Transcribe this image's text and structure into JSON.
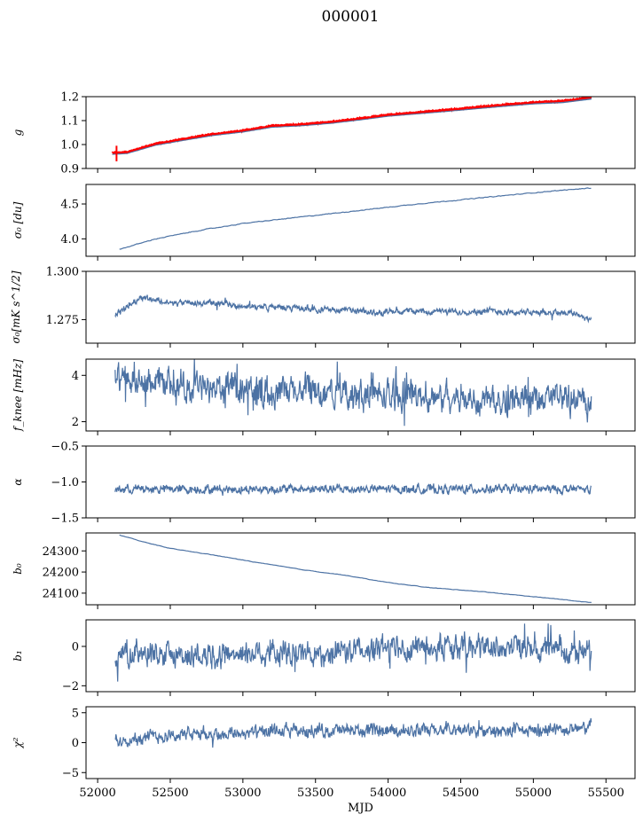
{
  "figure_title": "000001",
  "colors": {
    "series": "#4c72a4",
    "highlight": "#ff0000",
    "axes": "#000000"
  },
  "chart_data": [
    {
      "type": "line",
      "ylabel": "g",
      "ylim": [
        0.9,
        1.2
      ],
      "yticks": [
        0.9,
        1.0,
        1.1,
        1.2
      ],
      "ytick_labels": [
        "0.9",
        "1.0",
        "1.1",
        "1.2"
      ],
      "series": [
        {
          "x": [
            52100,
            52200,
            52400,
            52600,
            52800,
            53000,
            53200,
            53400,
            53600,
            53800,
            54000,
            54200,
            54400,
            54600,
            54800,
            55000,
            55200,
            55400
          ],
          "values": [
            0.96,
            0.965,
            1.0,
            1.02,
            1.04,
            1.055,
            1.075,
            1.08,
            1.09,
            1.105,
            1.12,
            1.13,
            1.14,
            1.15,
            1.16,
            1.17,
            1.175,
            1.19
          ]
        }
      ],
      "highlight_series": {
        "x": [
          52100,
          52200,
          52400,
          52600,
          52800,
          53000,
          53200,
          53400,
          53600,
          53800,
          54000,
          54200,
          54400,
          54600,
          54800,
          55000,
          55200,
          55400
        ],
        "values": [
          0.965,
          0.968,
          1.003,
          1.024,
          1.044,
          1.058,
          1.078,
          1.084,
          1.094,
          1.108,
          1.124,
          1.134,
          1.144,
          1.155,
          1.166,
          1.176,
          1.182,
          1.197
        ]
      }
    },
    {
      "type": "line",
      "ylabel": "σ₀ [du]",
      "ylim": [
        3.75,
        4.78
      ],
      "yticks": [
        4.0,
        4.5
      ],
      "ytick_labels": [
        "4.0",
        "4.5"
      ],
      "series": [
        {
          "x": [
            52150,
            52400,
            52700,
            53000,
            53300,
            53600,
            53900,
            54200,
            54500,
            54800,
            55100,
            55400
          ],
          "values": [
            3.85,
            4.0,
            4.12,
            4.22,
            4.29,
            4.36,
            4.43,
            4.5,
            4.56,
            4.62,
            4.68,
            4.73
          ]
        }
      ]
    },
    {
      "type": "line",
      "ylabel": "σ₀[mK s^1/2]",
      "ylim": [
        1.2628,
        1.3
      ],
      "yticks": [
        1.275,
        1.3
      ],
      "ytick_labels": [
        "1.275",
        "1.300"
      ],
      "series": [
        {
          "x": [
            52120,
            52200,
            52300,
            52500,
            52800,
            53000,
            53200,
            53500,
            53700,
            53900,
            54100,
            54400,
            54700,
            55000,
            55200,
            55300,
            55400
          ],
          "values": [
            1.2775,
            1.2815,
            1.287,
            1.2835,
            1.2835,
            1.282,
            1.2815,
            1.2805,
            1.28,
            1.2785,
            1.2795,
            1.279,
            1.2795,
            1.2785,
            1.279,
            1.278,
            1.2745
          ]
        }
      ]
    },
    {
      "type": "line",
      "ylabel": "f_knee [mHz]",
      "ylim": [
        1.6,
        4.7
      ],
      "yticks": [
        2,
        4
      ],
      "ytick_labels": [
        "2",
        "4"
      ],
      "series": [
        {
          "x": [
            52120,
            52300,
            52600,
            52900,
            53200,
            53500,
            53800,
            54100,
            54400,
            54700,
            55000,
            55200,
            55400
          ],
          "values": [
            3.8,
            3.7,
            3.5,
            3.4,
            3.3,
            3.25,
            3.2,
            3.1,
            3.05,
            3.0,
            3.0,
            3.05,
            2.8
          ]
        }
      ]
    },
    {
      "type": "line",
      "ylabel": "α",
      "ylim": [
        -1.5,
        -0.5
      ],
      "yticks": [
        -1.5,
        -1.0,
        -0.5
      ],
      "ytick_labels": [
        "−1.5",
        "−1.0",
        "−0.5"
      ],
      "series": [
        {
          "x": [
            52120,
            52500,
            53000,
            53500,
            54000,
            54500,
            55000,
            55400
          ],
          "values": [
            -1.1,
            -1.1,
            -1.1,
            -1.1,
            -1.1,
            -1.1,
            -1.1,
            -1.1
          ]
        }
      ]
    },
    {
      "type": "line",
      "ylabel": "b₀",
      "ylim": [
        24045,
        24385
      ],
      "yticks": [
        24100,
        24200,
        24300
      ],
      "ytick_labels": [
        "24100",
        "24200",
        "24300"
      ],
      "series": [
        {
          "x": [
            52150,
            52300,
            52500,
            52800,
            53100,
            53400,
            53700,
            54000,
            54300,
            54600,
            54900,
            55200,
            55400
          ],
          "values": [
            24375,
            24345,
            24312,
            24280,
            24245,
            24212,
            24185,
            24150,
            24125,
            24110,
            24090,
            24070,
            24055
          ]
        }
      ]
    },
    {
      "type": "line",
      "ylabel": "b₁",
      "ylim": [
        -2.3,
        1.35
      ],
      "yticks": [
        -2,
        0
      ],
      "ytick_labels": [
        "−2",
        "0"
      ],
      "series": [
        {
          "x": [
            52120,
            52500,
            53000,
            53500,
            54000,
            54500,
            55000,
            55400
          ],
          "values": [
            -0.4,
            -0.5,
            -0.3,
            -0.4,
            -0.1,
            0.0,
            -0.1,
            -0.3
          ]
        }
      ]
    },
    {
      "type": "line",
      "ylabel": "χ²",
      "ylim": [
        -6,
        6
      ],
      "yticks": [
        -5,
        0,
        5
      ],
      "ytick_labels": [
        "−5",
        "0",
        "5"
      ],
      "xlabel": "MJD",
      "xlim": [
        51920,
        55700
      ],
      "xticks": [
        52000,
        52500,
        53000,
        53500,
        54000,
        54500,
        55000,
        55500
      ],
      "xtick_labels": [
        "52000",
        "52500",
        "53000",
        "53500",
        "54000",
        "54500",
        "55000",
        "55500"
      ],
      "series": [
        {
          "x": [
            52120,
            52500,
            53000,
            53500,
            54000,
            54500,
            55000,
            55400
          ],
          "values": [
            0.5,
            1.3,
            1.6,
            2.0,
            2.0,
            2.0,
            1.9,
            2.6
          ]
        }
      ]
    }
  ]
}
